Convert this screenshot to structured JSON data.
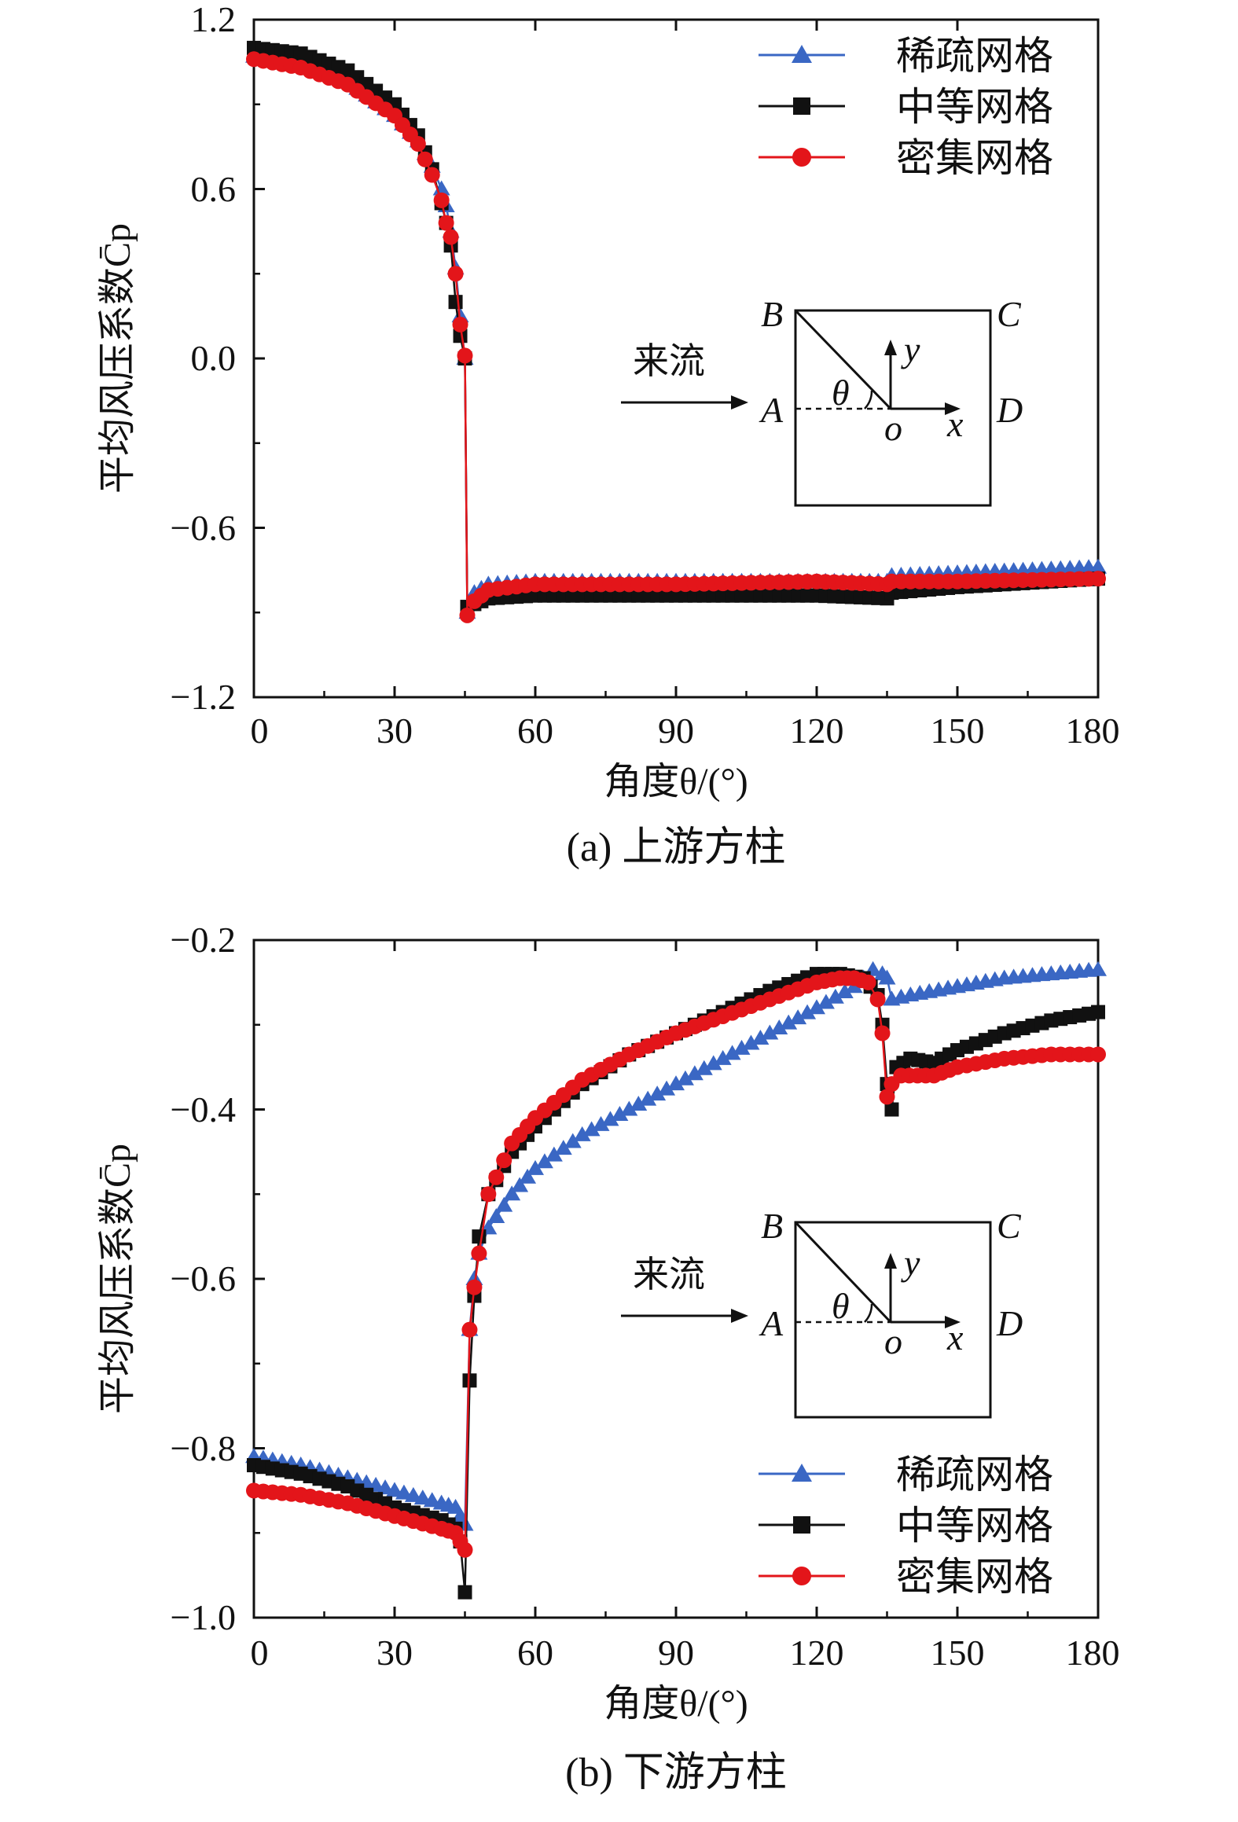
{
  "colors": {
    "coarse": "#3a67c4",
    "medium": "#111111",
    "fine": "#e3151a",
    "axis": "#111111"
  },
  "chart_data": [
    {
      "type": "line",
      "caption": "(a) 上游方柱",
      "xlabel": "角度θ/(°)",
      "ylabel": "平均风压系数C̄p",
      "xlim": [
        0,
        180
      ],
      "ylim": [
        -1.2,
        1.2
      ],
      "xticks": [
        0,
        30,
        60,
        90,
        120,
        150,
        180
      ],
      "yticks": [
        1.2,
        0.6,
        0.0,
        -0.6,
        -1.2
      ],
      "ytick_labels": [
        "1.2",
        "0.6",
        "0.0",
        "−0.6",
        "−1.2"
      ],
      "legend_position": "top-right",
      "inset": {
        "flow_label": "来流",
        "corner_labels": [
          "A",
          "B",
          "C",
          "D"
        ],
        "axis_labels": [
          "x",
          "y",
          "o"
        ],
        "angle_label": "θ"
      },
      "series": [
        {
          "name": "稀疏网格",
          "marker": "triangle",
          "color_key": "coarse",
          "points": [
            [
              0,
              1.07
            ],
            [
              10,
              1.04
            ],
            [
              20,
              0.98
            ],
            [
              30,
              0.86
            ],
            [
              35,
              0.77
            ],
            [
              38,
              0.68
            ],
            [
              40,
              0.6
            ],
            [
              41,
              0.54
            ],
            [
              42,
              0.45
            ],
            [
              43,
              0.32
            ],
            [
              44,
              0.15
            ],
            [
              45,
              0.0
            ],
            [
              45.5,
              -0.9
            ],
            [
              47,
              -0.83
            ],
            [
              50,
              -0.8
            ],
            [
              60,
              -0.79
            ],
            [
              90,
              -0.79
            ],
            [
              120,
              -0.79
            ],
            [
              135,
              -0.79
            ],
            [
              136,
              -0.77
            ],
            [
              150,
              -0.76
            ],
            [
              180,
              -0.74
            ]
          ]
        },
        {
          "name": "中等网格",
          "marker": "square",
          "color_key": "medium",
          "points": [
            [
              0,
              1.1
            ],
            [
              10,
              1.08
            ],
            [
              20,
              1.02
            ],
            [
              30,
              0.9
            ],
            [
              35,
              0.79
            ],
            [
              38,
              0.67
            ],
            [
              40,
              0.55
            ],
            [
              41,
              0.48
            ],
            [
              42,
              0.4
            ],
            [
              43,
              0.2
            ],
            [
              44,
              0.08
            ],
            [
              45,
              0.0
            ],
            [
              45.5,
              -0.88
            ],
            [
              47,
              -0.87
            ],
            [
              50,
              -0.85
            ],
            [
              60,
              -0.84
            ],
            [
              90,
              -0.84
            ],
            [
              120,
              -0.84
            ],
            [
              135,
              -0.85
            ],
            [
              136,
              -0.83
            ],
            [
              150,
              -0.81
            ],
            [
              180,
              -0.78
            ]
          ]
        },
        {
          "name": "密集网格",
          "marker": "circle",
          "color_key": "fine",
          "points": [
            [
              0,
              1.06
            ],
            [
              10,
              1.03
            ],
            [
              20,
              0.97
            ],
            [
              30,
              0.86
            ],
            [
              35,
              0.76
            ],
            [
              38,
              0.65
            ],
            [
              40,
              0.56
            ],
            [
              41,
              0.48
            ],
            [
              42,
              0.43
            ],
            [
              43,
              0.3
            ],
            [
              44,
              0.12
            ],
            [
              45,
              0.01
            ],
            [
              45.5,
              -0.91
            ],
            [
              47,
              -0.86
            ],
            [
              50,
              -0.82
            ],
            [
              60,
              -0.8
            ],
            [
              90,
              -0.8
            ],
            [
              120,
              -0.79
            ],
            [
              135,
              -0.8
            ],
            [
              136,
              -0.79
            ],
            [
              150,
              -0.79
            ],
            [
              180,
              -0.78
            ]
          ]
        }
      ]
    },
    {
      "type": "line",
      "caption": "(b) 下游方柱",
      "xlabel": "角度θ/(°)",
      "ylabel": "平均风压系数C̄p",
      "xlim": [
        0,
        180
      ],
      "ylim": [
        -1.0,
        -0.2
      ],
      "xticks": [
        0,
        30,
        60,
        90,
        120,
        150,
        180
      ],
      "yticks": [
        -0.2,
        -0.4,
        -0.6,
        -0.8,
        -1.0
      ],
      "ytick_labels": [
        "−0.2",
        "−0.4",
        "−0.6",
        "−0.8",
        "−1.0"
      ],
      "legend_position": "bottom-right",
      "inset": {
        "flow_label": "来流",
        "corner_labels": [
          "A",
          "B",
          "C",
          "D"
        ],
        "axis_labels": [
          "x",
          "y",
          "o"
        ],
        "angle_label": "θ"
      },
      "series": [
        {
          "name": "稀疏网格",
          "marker": "triangle",
          "color_key": "coarse",
          "points": [
            [
              0,
              -0.81
            ],
            [
              10,
              -0.82
            ],
            [
              20,
              -0.835
            ],
            [
              30,
              -0.85
            ],
            [
              40,
              -0.865
            ],
            [
              43,
              -0.87
            ],
            [
              44,
              -0.88
            ],
            [
              45,
              -0.89
            ],
            [
              46,
              -0.66
            ],
            [
              47,
              -0.6
            ],
            [
              48,
              -0.57
            ],
            [
              50,
              -0.54
            ],
            [
              55,
              -0.5
            ],
            [
              60,
              -0.47
            ],
            [
              70,
              -0.43
            ],
            [
              80,
              -0.4
            ],
            [
              90,
              -0.37
            ],
            [
              100,
              -0.34
            ],
            [
              110,
              -0.31
            ],
            [
              120,
              -0.28
            ],
            [
              128,
              -0.255
            ],
            [
              132,
              -0.235
            ],
            [
              134,
              -0.24
            ],
            [
              135,
              -0.245
            ],
            [
              136,
              -0.27
            ],
            [
              140,
              -0.265
            ],
            [
              150,
              -0.255
            ],
            [
              160,
              -0.245
            ],
            [
              170,
              -0.24
            ],
            [
              180,
              -0.235
            ]
          ]
        },
        {
          "name": "中等网格",
          "marker": "square",
          "color_key": "medium",
          "points": [
            [
              0,
              -0.82
            ],
            [
              10,
              -0.83
            ],
            [
              20,
              -0.845
            ],
            [
              30,
              -0.87
            ],
            [
              40,
              -0.885
            ],
            [
              43,
              -0.895
            ],
            [
              44,
              -0.91
            ],
            [
              45,
              -0.97
            ],
            [
              46,
              -0.72
            ],
            [
              47,
              -0.62
            ],
            [
              48,
              -0.55
            ],
            [
              50,
              -0.5
            ],
            [
              55,
              -0.45
            ],
            [
              60,
              -0.42
            ],
            [
              70,
              -0.37
            ],
            [
              80,
              -0.335
            ],
            [
              90,
              -0.31
            ],
            [
              100,
              -0.285
            ],
            [
              110,
              -0.26
            ],
            [
              120,
              -0.24
            ],
            [
              125,
              -0.24
            ],
            [
              130,
              -0.245
            ],
            [
              133,
              -0.265
            ],
            [
              134,
              -0.3
            ],
            [
              135,
              -0.37
            ],
            [
              136,
              -0.4
            ],
            [
              137,
              -0.35
            ],
            [
              140,
              -0.34
            ],
            [
              145,
              -0.345
            ],
            [
              150,
              -0.33
            ],
            [
              160,
              -0.31
            ],
            [
              170,
              -0.295
            ],
            [
              180,
              -0.285
            ]
          ]
        },
        {
          "name": "密集网格",
          "marker": "circle",
          "color_key": "fine",
          "points": [
            [
              0,
              -0.85
            ],
            [
              10,
              -0.855
            ],
            [
              20,
              -0.865
            ],
            [
              30,
              -0.88
            ],
            [
              40,
              -0.895
            ],
            [
              43,
              -0.9
            ],
            [
              44,
              -0.91
            ],
            [
              45,
              -0.92
            ],
            [
              46,
              -0.66
            ],
            [
              47,
              -0.61
            ],
            [
              48,
              -0.57
            ],
            [
              50,
              -0.5
            ],
            [
              55,
              -0.44
            ],
            [
              60,
              -0.41
            ],
            [
              70,
              -0.365
            ],
            [
              80,
              -0.335
            ],
            [
              90,
              -0.31
            ],
            [
              100,
              -0.29
            ],
            [
              110,
              -0.27
            ],
            [
              120,
              -0.25
            ],
            [
              125,
              -0.245
            ],
            [
              128,
              -0.245
            ],
            [
              131,
              -0.25
            ],
            [
              133,
              -0.27
            ],
            [
              134,
              -0.31
            ],
            [
              135,
              -0.385
            ],
            [
              136,
              -0.37
            ],
            [
              138,
              -0.36
            ],
            [
              145,
              -0.36
            ],
            [
              150,
              -0.35
            ],
            [
              160,
              -0.34
            ],
            [
              170,
              -0.335
            ],
            [
              180,
              -0.335
            ]
          ]
        }
      ]
    }
  ]
}
